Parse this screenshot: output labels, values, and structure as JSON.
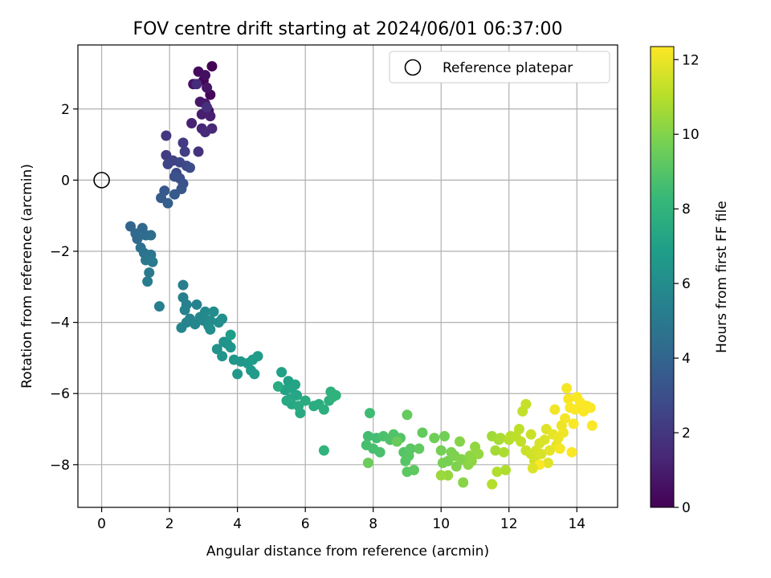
{
  "chart_data": {
    "type": "scatter",
    "title": "FOV centre drift starting at 2024/06/01 06:37:00",
    "xlabel": "Angular distance from reference (arcmin)",
    "ylabel": "Rotation from reference (arcmin)",
    "xlim": [
      -0.7,
      15.2
    ],
    "ylim": [
      -9.2,
      3.8
    ],
    "xticks": [
      0,
      2,
      4,
      6,
      8,
      10,
      12,
      14
    ],
    "yticks": [
      -8,
      -6,
      -4,
      -2,
      0,
      2
    ],
    "grid": true,
    "legend": {
      "placement": "top-right",
      "entries": [
        "Reference platepar"
      ]
    },
    "reference_point": {
      "x": 0,
      "y": 0,
      "marker": "open-circle"
    },
    "colorbar": {
      "label": "Hours from first FF file",
      "range": [
        0,
        12.35
      ],
      "ticks": [
        0,
        2,
        4,
        6,
        8,
        10,
        12
      ],
      "colormap": "viridis",
      "stops": [
        "#440154",
        "#482878",
        "#3e4989",
        "#31688e",
        "#26828e",
        "#1f9e89",
        "#35b779",
        "#6ece58",
        "#b5de2b",
        "#fde725"
      ]
    },
    "points": [
      [
        3.25,
        3.2,
        0.0
      ],
      [
        3.0,
        2.8,
        0.1
      ],
      [
        3.2,
        2.4,
        0.2
      ],
      [
        3.15,
        1.95,
        0.3
      ],
      [
        2.85,
        3.05,
        0.4
      ],
      [
        3.05,
        2.95,
        0.5
      ],
      [
        2.7,
        2.7,
        0.6
      ],
      [
        3.1,
        2.6,
        0.7
      ],
      [
        2.9,
        2.2,
        0.8
      ],
      [
        3.05,
        2.15,
        0.9
      ],
      [
        2.95,
        1.85,
        1.0
      ],
      [
        3.2,
        1.8,
        1.1
      ],
      [
        2.65,
        1.6,
        1.2
      ],
      [
        2.95,
        1.45,
        1.3
      ],
      [
        3.25,
        1.45,
        1.4
      ],
      [
        3.05,
        1.35,
        1.5
      ],
      [
        2.8,
        2.7,
        1.6
      ],
      [
        3.1,
        2.05,
        1.7
      ],
      [
        2.85,
        0.8,
        1.8
      ],
      [
        1.9,
        1.25,
        2.0
      ],
      [
        2.4,
        1.05,
        2.1
      ],
      [
        1.9,
        0.7,
        2.2
      ],
      [
        2.45,
        0.8,
        2.3
      ],
      [
        2.1,
        0.55,
        2.4
      ],
      [
        1.95,
        0.45,
        2.5
      ],
      [
        2.3,
        0.5,
        2.6
      ],
      [
        2.5,
        0.4,
        2.7
      ],
      [
        2.2,
        0.2,
        2.8
      ],
      [
        2.6,
        0.35,
        2.9
      ],
      [
        2.3,
        0.05,
        3.0
      ],
      [
        2.15,
        0.1,
        3.1
      ],
      [
        2.4,
        -0.1,
        3.2
      ],
      [
        2.35,
        -0.25,
        3.3
      ],
      [
        1.85,
        -0.3,
        3.4
      ],
      [
        2.15,
        -0.4,
        3.5
      ],
      [
        1.75,
        -0.5,
        3.6
      ],
      [
        1.95,
        -0.65,
        3.7
      ],
      [
        0.85,
        -1.3,
        4.0
      ],
      [
        1.2,
        -1.35,
        4.1
      ],
      [
        1.0,
        -1.5,
        4.2
      ],
      [
        1.05,
        -1.65,
        4.3
      ],
      [
        1.3,
        -1.55,
        4.4
      ],
      [
        1.45,
        -1.55,
        4.5
      ],
      [
        1.15,
        -1.9,
        4.6
      ],
      [
        1.25,
        -2.05,
        4.7
      ],
      [
        1.45,
        -2.1,
        4.8
      ],
      [
        1.3,
        -2.25,
        4.9
      ],
      [
        1.5,
        -2.3,
        5.0
      ],
      [
        1.4,
        -2.6,
        5.05
      ],
      [
        1.35,
        -2.85,
        5.1
      ],
      [
        1.7,
        -3.55,
        5.2
      ],
      [
        2.4,
        -2.95,
        5.3
      ],
      [
        2.4,
        -3.3,
        5.35
      ],
      [
        2.5,
        -3.5,
        5.4
      ],
      [
        2.45,
        -3.65,
        5.45
      ],
      [
        2.8,
        -3.5,
        5.5
      ],
      [
        2.6,
        -3.9,
        5.55
      ],
      [
        2.5,
        -4.0,
        5.6
      ],
      [
        2.35,
        -4.15,
        5.65
      ],
      [
        2.75,
        -4.05,
        5.7
      ],
      [
        2.9,
        -3.85,
        5.75
      ],
      [
        3.0,
        -3.95,
        5.8
      ],
      [
        3.05,
        -3.7,
        5.85
      ],
      [
        3.15,
        -4.1,
        5.9
      ],
      [
        3.2,
        -3.95,
        5.95
      ],
      [
        3.3,
        -3.7,
        6.0
      ],
      [
        3.45,
        -4.0,
        6.05
      ],
      [
        3.55,
        -3.9,
        6.1
      ],
      [
        3.2,
        -4.2,
        6.15
      ],
      [
        3.6,
        -4.55,
        6.2
      ],
      [
        3.4,
        -4.75,
        6.25
      ],
      [
        3.7,
        -4.6,
        6.3
      ],
      [
        3.55,
        -4.95,
        6.35
      ],
      [
        3.8,
        -4.7,
        6.4
      ],
      [
        3.9,
        -5.05,
        6.45
      ],
      [
        4.1,
        -5.1,
        6.5
      ],
      [
        4.0,
        -5.45,
        6.55
      ],
      [
        4.3,
        -5.15,
        6.6
      ],
      [
        4.4,
        -5.35,
        6.65
      ],
      [
        4.6,
        -4.95,
        6.7
      ],
      [
        4.5,
        -5.45,
        6.75
      ],
      [
        4.45,
        -5.05,
        6.8
      ],
      [
        3.8,
        -4.35,
        6.85
      ],
      [
        5.3,
        -5.4,
        7.0
      ],
      [
        5.5,
        -5.65,
        7.05
      ],
      [
        5.4,
        -5.9,
        7.1
      ],
      [
        5.6,
        -5.85,
        7.15
      ],
      [
        5.7,
        -5.75,
        7.2
      ],
      [
        5.55,
        -6.15,
        7.25
      ],
      [
        5.75,
        -6.05,
        7.3
      ],
      [
        5.6,
        -6.3,
        7.35
      ],
      [
        5.45,
        -6.2,
        7.4
      ],
      [
        5.85,
        -6.55,
        7.45
      ],
      [
        5.8,
        -6.35,
        7.5
      ],
      [
        5.2,
        -5.8,
        7.55
      ],
      [
        6.0,
        -6.2,
        7.6
      ],
      [
        6.25,
        -6.35,
        7.65
      ],
      [
        6.4,
        -6.3,
        7.7
      ],
      [
        6.55,
        -6.45,
        7.75
      ],
      [
        6.7,
        -6.2,
        7.8
      ],
      [
        6.75,
        -5.95,
        7.85
      ],
      [
        6.8,
        -6.1,
        7.9
      ],
      [
        6.9,
        -6.05,
        7.95
      ],
      [
        6.55,
        -7.6,
        8.0
      ],
      [
        7.9,
        -6.55,
        8.5
      ],
      [
        7.85,
        -7.2,
        8.55
      ],
      [
        8.1,
        -7.25,
        8.6
      ],
      [
        7.8,
        -7.45,
        8.65
      ],
      [
        8.0,
        -7.55,
        8.7
      ],
      [
        8.2,
        -7.65,
        8.75
      ],
      [
        8.3,
        -7.2,
        8.8
      ],
      [
        8.5,
        -7.3,
        8.85
      ],
      [
        8.6,
        -7.15,
        8.9
      ],
      [
        8.8,
        -7.25,
        8.95
      ],
      [
        8.9,
        -7.65,
        9.0
      ],
      [
        8.95,
        -7.9,
        9.05
      ],
      [
        9.05,
        -7.75,
        9.1
      ],
      [
        9.1,
        -7.55,
        9.15
      ],
      [
        9.0,
        -8.2,
        9.2
      ],
      [
        9.2,
        -8.15,
        9.25
      ],
      [
        9.35,
        -7.55,
        9.3
      ],
      [
        9.45,
        -7.1,
        9.35
      ],
      [
        9.0,
        -6.6,
        9.4
      ],
      [
        8.7,
        -7.35,
        9.45
      ],
      [
        7.85,
        -7.95,
        9.5
      ],
      [
        9.8,
        -7.25,
        9.6
      ],
      [
        10.1,
        -7.2,
        9.65
      ],
      [
        10.0,
        -7.6,
        9.7
      ],
      [
        10.05,
        -7.95,
        9.75
      ],
      [
        10.2,
        -7.9,
        9.8
      ],
      [
        10.3,
        -7.65,
        9.85
      ],
      [
        10.4,
        -7.75,
        9.9
      ],
      [
        10.45,
        -8.05,
        9.95
      ],
      [
        10.6,
        -7.85,
        10.0
      ],
      [
        10.55,
        -7.35,
        10.05
      ],
      [
        10.65,
        -8.5,
        10.1
      ],
      [
        10.8,
        -8.0,
        10.15
      ],
      [
        10.9,
        -7.9,
        10.2
      ],
      [
        10.85,
        -7.75,
        10.25
      ],
      [
        11.0,
        -7.5,
        10.3
      ],
      [
        11.1,
        -7.7,
        10.35
      ],
      [
        10.2,
        -8.3,
        10.4
      ],
      [
        10.0,
        -8.3,
        10.45
      ],
      [
        11.5,
        -7.2,
        10.6
      ],
      [
        11.6,
        -7.6,
        10.65
      ],
      [
        11.7,
        -7.3,
        10.7
      ],
      [
        11.75,
        -7.25,
        10.75
      ],
      [
        11.85,
        -7.65,
        10.8
      ],
      [
        11.9,
        -8.15,
        10.85
      ],
      [
        11.65,
        -8.2,
        10.9
      ],
      [
        11.5,
        -8.55,
        10.95
      ],
      [
        12.0,
        -7.3,
        11.0
      ],
      [
        12.05,
        -7.2,
        11.05
      ],
      [
        12.2,
        -7.2,
        11.1
      ],
      [
        12.3,
        -7.0,
        11.15
      ],
      [
        12.35,
        -7.35,
        11.2
      ],
      [
        12.4,
        -6.5,
        11.25
      ],
      [
        12.5,
        -6.3,
        11.3
      ],
      [
        12.5,
        -7.6,
        11.35
      ],
      [
        12.65,
        -7.15,
        11.4
      ],
      [
        12.65,
        -7.7,
        11.45
      ],
      [
        12.75,
        -7.9,
        11.5
      ],
      [
        12.8,
        -7.6,
        11.55
      ],
      [
        12.9,
        -7.4,
        11.6
      ],
      [
        12.95,
        -7.7,
        11.65
      ],
      [
        13.05,
        -7.3,
        11.7
      ],
      [
        13.1,
        -7.0,
        11.75
      ],
      [
        13.15,
        -7.95,
        11.8
      ],
      [
        13.2,
        -7.6,
        11.85
      ],
      [
        13.3,
        -7.15,
        11.9
      ],
      [
        13.4,
        -7.45,
        11.95
      ],
      [
        13.45,
        -7.25,
        12.0
      ],
      [
        13.55,
        -6.9,
        12.05
      ],
      [
        13.6,
        -7.1,
        12.1
      ],
      [
        13.65,
        -6.7,
        12.15
      ],
      [
        13.7,
        -5.85,
        12.2
      ],
      [
        13.75,
        -6.15,
        12.25
      ],
      [
        13.8,
        -6.4,
        12.3
      ],
      [
        13.85,
        -7.65,
        12.3
      ],
      [
        13.9,
        -6.85,
        12.3
      ],
      [
        13.95,
        -6.45,
        12.3
      ],
      [
        14.0,
        -6.1,
        12.3
      ],
      [
        14.1,
        -6.25,
        12.3
      ],
      [
        14.2,
        -6.5,
        12.3
      ],
      [
        14.3,
        -6.35,
        12.3
      ],
      [
        14.4,
        -6.4,
        12.3
      ],
      [
        14.45,
        -6.9,
        12.3
      ],
      [
        12.9,
        -8.0,
        12.3
      ],
      [
        13.5,
        -7.55,
        12.2
      ],
      [
        13.35,
        -6.45,
        12.1
      ],
      [
        12.7,
        -8.1,
        11.7
      ]
    ]
  }
}
